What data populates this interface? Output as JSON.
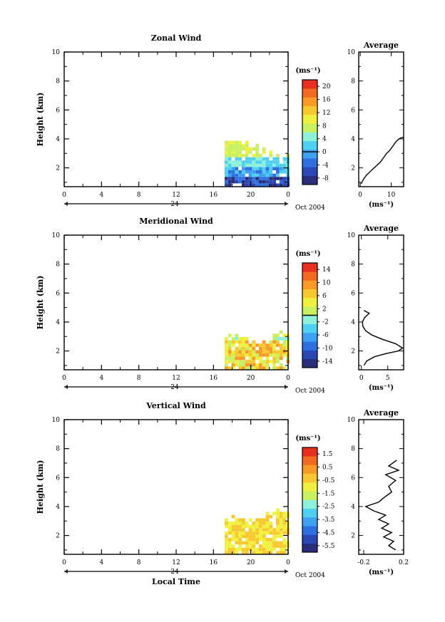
{
  "chart_data": [
    {
      "type": "heatmap",
      "title": "Zonal Wind",
      "ylabel": "Height (km)",
      "xlabel": "",
      "x_ticks": [
        "0",
        "4",
        "8",
        "12",
        "16",
        "20",
        "0"
      ],
      "y_ticks": [
        "2",
        "4",
        "6",
        "8",
        "10"
      ],
      "xlim": [
        0,
        24
      ],
      "ylim": [
        0.7,
        10
      ],
      "date_tick": "24",
      "date_label": "Oct 2004",
      "colorbar": {
        "unit_label": "(ms⁻¹)",
        "ticks": [
          "20",
          "16",
          "12",
          "8",
          "4",
          "0",
          "-4",
          "-8"
        ],
        "range": [
          -10,
          22
        ],
        "zero_level": 0
      },
      "field": {
        "x_start": 17.2,
        "x_end": 23.9,
        "y_start": 0.7,
        "y_top": [
          4.0,
          3.8,
          3.3,
          2.9
        ],
        "top_y_edge": [
          3.3,
          3.9
        ],
        "profile_value_range": [
          -8,
          14
        ]
      },
      "profile": {
        "title": "Average",
        "unit_label": "(ms⁻¹)",
        "x_ticks": [
          "0",
          "10"
        ],
        "y_ticks": [
          "2",
          "4",
          "6",
          "8",
          "10"
        ],
        "xlim": [
          -0.5,
          14
        ],
        "ylim": [
          0.7,
          10
        ],
        "points": [
          [
            0.3,
            0.9
          ],
          [
            1.0,
            1.2
          ],
          [
            2.0,
            1.5
          ],
          [
            3.5,
            1.8
          ],
          [
            5.0,
            2.1
          ],
          [
            6.5,
            2.4
          ],
          [
            7.5,
            2.7
          ],
          [
            8.5,
            3.0
          ],
          [
            9.5,
            3.2
          ],
          [
            10.5,
            3.5
          ],
          [
            11.5,
            3.8
          ],
          [
            12.5,
            4.0
          ],
          [
            13.5,
            4.1
          ],
          [
            14.0,
            4.1
          ]
        ]
      }
    },
    {
      "type": "heatmap",
      "title": "Meridional Wind",
      "ylabel": "Height (km)",
      "xlabel": "",
      "x_ticks": [
        "0",
        "4",
        "8",
        "12",
        "16",
        "20",
        "0"
      ],
      "y_ticks": [
        "2",
        "4",
        "6",
        "8",
        "10"
      ],
      "xlim": [
        0,
        24
      ],
      "ylim": [
        0.7,
        10
      ],
      "date_tick": "24",
      "date_label": "Oct 2004",
      "colorbar": {
        "unit_label": "(ms⁻¹)",
        "ticks": [
          "14",
          "10",
          "6",
          "2",
          "-2",
          "-6",
          "-10",
          "-14"
        ],
        "range": [
          -16,
          16
        ],
        "zero_level": 0
      },
      "field": {
        "x_start": 17.2,
        "x_end": 23.9,
        "y_start": 0.7,
        "y_top": [
          3.2,
          2.9,
          2.7,
          3.4
        ],
        "top_y_edge": [
          2.6,
          3.4
        ],
        "profile_value_range": [
          -2,
          10
        ]
      },
      "profile": {
        "title": "Average",
        "unit_label": "(ms⁻¹)",
        "x_ticks": [
          "0",
          "5"
        ],
        "y_ticks": [
          "2",
          "4",
          "6",
          "8",
          "10"
        ],
        "xlim": [
          -0.5,
          8
        ],
        "ylim": [
          0.7,
          10
        ],
        "points": [
          [
            0.5,
            4.8
          ],
          [
            1.5,
            4.6
          ],
          [
            0.6,
            4.3
          ],
          [
            0.2,
            4.0
          ],
          [
            0.3,
            3.7
          ],
          [
            0.8,
            3.4
          ],
          [
            2.0,
            3.1
          ],
          [
            4.0,
            2.8
          ],
          [
            6.5,
            2.5
          ],
          [
            7.8,
            2.2
          ],
          [
            7.0,
            2.0
          ],
          [
            4.5,
            1.8
          ],
          [
            2.5,
            1.6
          ],
          [
            1.0,
            1.3
          ],
          [
            0.5,
            1.0
          ]
        ]
      }
    },
    {
      "type": "heatmap",
      "title": "Vertical Wind",
      "ylabel": "Height (km)",
      "xlabel": "Local Time",
      "x_ticks": [
        "0",
        "4",
        "8",
        "12",
        "16",
        "20",
        "0"
      ],
      "y_ticks": [
        "2",
        "4",
        "6",
        "8",
        "10"
      ],
      "xlim": [
        0,
        24
      ],
      "ylim": [
        0.7,
        10
      ],
      "date_tick": "24",
      "date_label": "Oct 2004",
      "colorbar": {
        "unit_label": "(ms⁻¹)",
        "ticks": [
          "1.5",
          "0.5",
          "-0.5",
          "-1.5",
          "-2.5",
          "-3.5",
          "-4.5",
          "-5.5"
        ],
        "range": [
          -6,
          2
        ],
        "zero_level": null
      },
      "field": {
        "x_start": 17.2,
        "x_end": 23.9,
        "y_start": 0.7,
        "y_top": [
          3.4,
          3.2,
          3.5,
          3.9
        ],
        "top_y_edge": [
          3.3,
          3.9
        ],
        "profile_value_range": [
          0.2,
          1.2
        ]
      },
      "profile": {
        "title": "Average",
        "unit_label": "(ms⁻¹)",
        "x_ticks": [
          "-0.2",
          "0.2"
        ],
        "y_ticks": [
          "2",
          "4",
          "6",
          "8",
          "10"
        ],
        "xlim": [
          -0.25,
          0.2
        ],
        "ylim": [
          0.7,
          10
        ],
        "points": [
          [
            0.12,
            1.0
          ],
          [
            0.05,
            1.3
          ],
          [
            0.1,
            1.6
          ],
          [
            0.0,
            1.9
          ],
          [
            0.08,
            2.2
          ],
          [
            -0.02,
            2.5
          ],
          [
            0.05,
            2.8
          ],
          [
            -0.05,
            3.1
          ],
          [
            0.02,
            3.4
          ],
          [
            -0.1,
            3.7
          ],
          [
            -0.18,
            4.0
          ],
          [
            -0.05,
            4.3
          ],
          [
            0.0,
            4.6
          ],
          [
            0.08,
            5.0
          ],
          [
            0.05,
            5.4
          ],
          [
            0.12,
            5.8
          ],
          [
            0.02,
            6.2
          ],
          [
            0.15,
            6.5
          ],
          [
            0.05,
            6.8
          ],
          [
            0.13,
            7.2
          ]
        ]
      }
    }
  ],
  "colors": {
    "palette": [
      "#2a2e7a",
      "#2a47b4",
      "#2f6fe0",
      "#3fa0f0",
      "#4fd0f0",
      "#8ef0d8",
      "#c8f060",
      "#f0f040",
      "#f8c830",
      "#f89a28",
      "#f06a20",
      "#e83020"
    ]
  }
}
